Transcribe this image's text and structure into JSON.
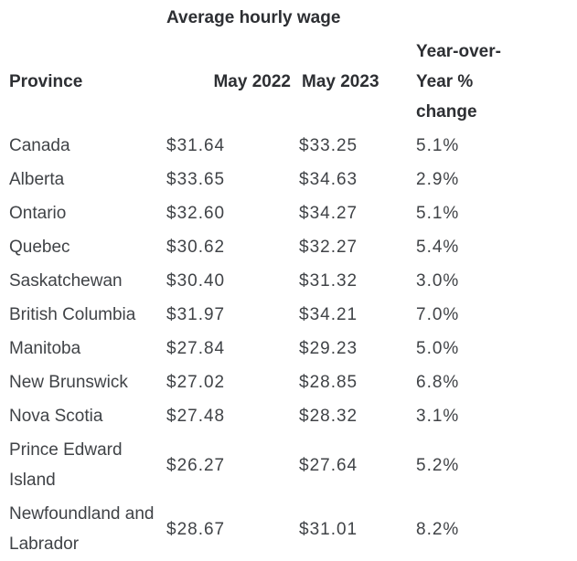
{
  "title": "Average hourly wage",
  "columns": [
    {
      "label": "Province"
    },
    {
      "label": "May 2022"
    },
    {
      "label": "May 2023"
    },
    {
      "label": "Year-over-\nYear %\nchange"
    }
  ],
  "rows": [
    {
      "province": "Canada",
      "may2022": "$31.64",
      "may2023": "$33.25",
      "yoy": "5.1%"
    },
    {
      "province": "Alberta",
      "may2022": "$33.65",
      "may2023": "$34.63",
      "yoy": "2.9%"
    },
    {
      "province": "Ontario",
      "may2022": "$32.60",
      "may2023": "$34.27",
      "yoy": "5.1%"
    },
    {
      "province": "Quebec",
      "may2022": "$30.62",
      "may2023": "$32.27",
      "yoy": "5.4%"
    },
    {
      "province": "Saskatchewan",
      "may2022": "$30.40",
      "may2023": "$31.32",
      "yoy": "3.0%"
    },
    {
      "province": "British Columbia",
      "may2022": "$31.97",
      "may2023": "$34.21",
      "yoy": "7.0%"
    },
    {
      "province": "Manitoba",
      "may2022": "$27.84",
      "may2023": "$29.23",
      "yoy": "5.0%"
    },
    {
      "province": "New Brunswick",
      "may2022": "$27.02",
      "may2023": "$28.85",
      "yoy": "6.8%"
    },
    {
      "province": "Nova Scotia",
      "may2022": "$27.48",
      "may2023": "$28.32",
      "yoy": "3.1%"
    },
    {
      "province": "Prince Edward\nIsland",
      "may2022": "$26.27",
      "may2023": "$27.64",
      "yoy": "5.2%"
    },
    {
      "province": "Newfoundland and\nLabrador",
      "may2022": "$28.67",
      "may2023": "$31.01",
      "yoy": "8.2%"
    }
  ],
  "colors": {
    "heading": "#2d2f33",
    "body": "#404347",
    "background": "#ffffff"
  },
  "chart_data": {
    "type": "table",
    "title": "Average hourly wage",
    "columns": [
      "Province",
      "May 2022",
      "May 2023",
      "Year-over-Year % change"
    ],
    "rows": [
      [
        "Canada",
        31.64,
        33.25,
        "5.1%"
      ],
      [
        "Alberta",
        33.65,
        34.63,
        "2.9%"
      ],
      [
        "Ontario",
        32.6,
        34.27,
        "5.1%"
      ],
      [
        "Quebec",
        30.62,
        32.27,
        "5.4%"
      ],
      [
        "Saskatchewan",
        30.4,
        31.32,
        "3.0%"
      ],
      [
        "British Columbia",
        31.97,
        34.21,
        "7.0%"
      ],
      [
        "Manitoba",
        27.84,
        29.23,
        "5.0%"
      ],
      [
        "New Brunswick",
        27.02,
        28.85,
        "6.8%"
      ],
      [
        "Nova Scotia",
        27.48,
        28.32,
        "3.1%"
      ],
      [
        "Prince Edward Island",
        26.27,
        27.64,
        "5.2%"
      ],
      [
        "Newfoundland and Labrador",
        28.67,
        31.01,
        "8.2%"
      ]
    ]
  }
}
